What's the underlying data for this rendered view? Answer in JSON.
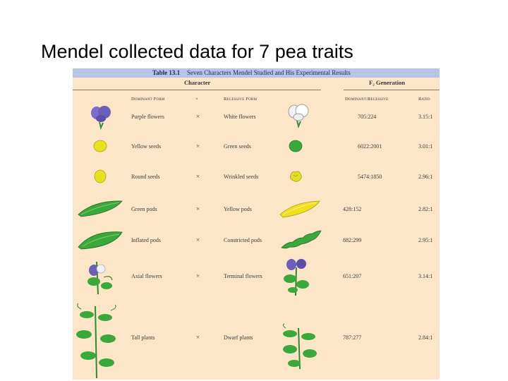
{
  "slide": {
    "title": "Mendel collected data for 7 pea traits"
  },
  "table": {
    "caption_number": "Table 13.1",
    "caption_text": "Seven Characters Mendel Studied and His Experimental Results",
    "group_character": "Character",
    "group_f2": "F₂ Generation",
    "headers": {
      "dominant": "Dominant Form",
      "cross": "×",
      "recessive": "Recessive Form",
      "dom_rec": "Dominant:Recessive",
      "ratio": "Ratio"
    },
    "rows": [
      {
        "dominant": "Purple flowers",
        "cross": "×",
        "recessive": "White flowers",
        "counts": "705:224",
        "ratio": "3.15:1"
      },
      {
        "dominant": "Yellow seeds",
        "cross": "×",
        "recessive": "Green seeds",
        "counts": "6022:2001",
        "ratio": "3.01:1"
      },
      {
        "dominant": "Round seeds",
        "cross": "×",
        "recessive": "Wrinkled seeds",
        "counts": "5474:1850",
        "ratio": "2.96:1"
      },
      {
        "dominant": "Green pods",
        "cross": "×",
        "recessive": "Yellow pods",
        "counts": "428:152",
        "ratio": "2.82:1"
      },
      {
        "dominant": "Inflated pods",
        "cross": "×",
        "recessive": "Constricted pods",
        "counts": "882:299",
        "ratio": "2.95:1"
      },
      {
        "dominant": "Axial flowers",
        "cross": "×",
        "recessive": "Terminal flowers",
        "counts": "651:207",
        "ratio": "3.14:1"
      },
      {
        "dominant": "Tall plants",
        "cross": "×",
        "recessive": "Dwarf plants",
        "counts": "787:277",
        "ratio": "2.84:1"
      }
    ]
  },
  "colors": {
    "table_bg": "#fde6c8",
    "caption_bg": "#b9c3e6",
    "purple": "#6b5fb8",
    "yellow": "#e8e020",
    "green": "#3aa83a"
  },
  "icons": [
    "purple-flower-icon",
    "white-flower-icon",
    "yellow-seed-icon",
    "green-seed-icon",
    "round-seed-icon",
    "wrinkled-seed-icon",
    "green-pod-icon",
    "yellow-pod-icon",
    "inflated-pod-icon",
    "constricted-pod-icon",
    "axial-flower-icon",
    "terminal-flower-icon",
    "tall-plant-icon",
    "dwarf-plant-icon"
  ]
}
